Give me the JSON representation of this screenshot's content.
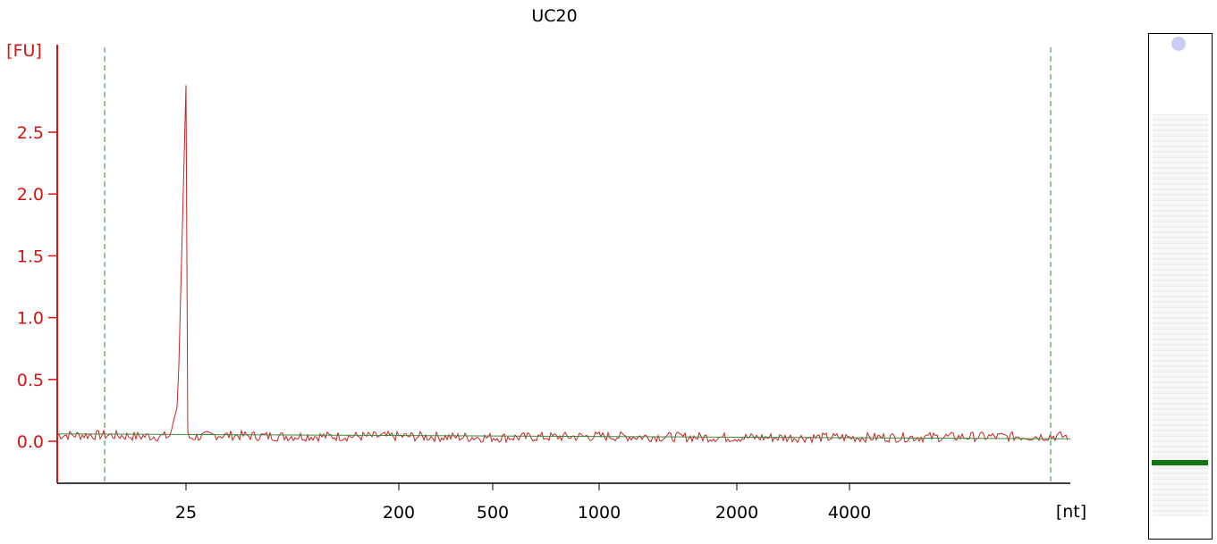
{
  "chart_data": {
    "type": "line",
    "title": "UC20",
    "ylabel": "[FU]",
    "xlabel": "[nt]",
    "y_ticks": [
      "0.0",
      "0.5",
      "1.0",
      "1.5",
      "2.0",
      "2.5"
    ],
    "y_tick_values": [
      0.0,
      0.5,
      1.0,
      1.5,
      2.0,
      2.5
    ],
    "ylim": [
      -0.33,
      3.1
    ],
    "x_scale": "nonlinear (electrophoresis migration)",
    "x_ticks": [
      "25",
      "200",
      "500",
      "1000",
      "2000",
      "4000"
    ],
    "x_tick_values": [
      25,
      200,
      500,
      1000,
      2000,
      4000
    ],
    "markers": [
      {
        "name": "lower marker",
        "nt": 25,
        "height_fu": 2.88
      },
      {
        "name": "upper marker",
        "nt": 6000
      }
    ],
    "series": [
      {
        "name": "",
        "color": "#cc2222",
        "description": "noisy trace with single sharp peak",
        "x": [
          20,
          22,
          24,
          24.5,
          25,
          25.5,
          26,
          28,
          50,
          100,
          200,
          500,
          1000,
          2000,
          4000,
          6000
        ],
        "y": [
          0.05,
          0.04,
          0.04,
          0.3,
          2.88,
          2.1,
          0.05,
          0.03,
          0.05,
          0.04,
          0.04,
          0.03,
          0.04,
          0.03,
          0.03,
          0.04
        ]
      },
      {
        "name": "",
        "color": "#3a8a3a",
        "description": "baseline",
        "x": [
          18,
          6500
        ],
        "y": [
          0.06,
          0.02
        ]
      }
    ],
    "colors": {
      "axis": "#dd1111",
      "trace": "#cc2222",
      "baseline": "#3a8a3a",
      "marker_line": "#2e8b2e",
      "gel_marker": "#117711",
      "gel_dot": "#c9cdf5"
    }
  }
}
